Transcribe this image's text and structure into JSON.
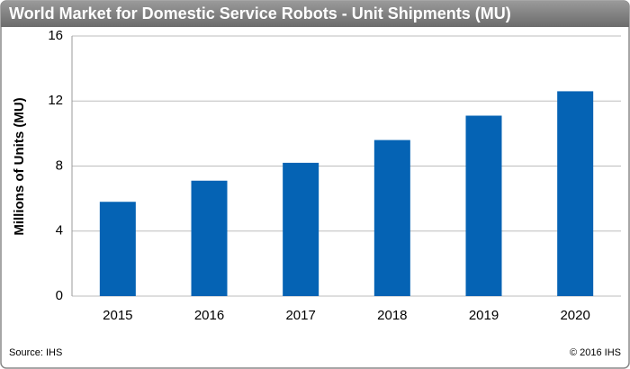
{
  "chart_data": {
    "type": "bar",
    "title": "World Market for Domestic Service Robots - Unit Shipments (MU)",
    "y_label": "Millions of Units (MU)",
    "categories": [
      "2015",
      "2016",
      "2017",
      "2018",
      "2019",
      "2020"
    ],
    "values": [
      5.8,
      7.1,
      8.2,
      9.6,
      11.1,
      12.6
    ],
    "color": "#0563b4",
    "ylim": [
      0,
      16
    ],
    "yticks": [
      0,
      4,
      8,
      12,
      16
    ],
    "grid": true,
    "source": "Source: IHS",
    "copyright": "© 2016 IHS"
  }
}
